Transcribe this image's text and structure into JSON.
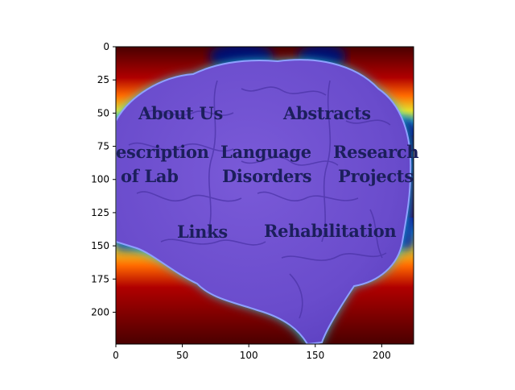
{
  "figure": {
    "x_ticks": [
      0,
      50,
      100,
      150,
      200
    ],
    "y_ticks": [
      0,
      25,
      50,
      75,
      100,
      125,
      150,
      175,
      200
    ],
    "xlim": [
      0,
      224
    ],
    "ylim": [
      224,
      0
    ],
    "colormap": "jet",
    "colors": {
      "overlay": "#6b4fd0",
      "cold": "#000a5a",
      "hot": "#4a0000",
      "background": "#ffffff"
    }
  },
  "nav": {
    "about_us": "About Us",
    "abstracts": "Abstracts",
    "description_line1": "escription",
    "description_line2": "of Lab",
    "language_line1": "Language",
    "language_line2": "Disorders",
    "research_line1": "Research",
    "research_line2": "Projects",
    "links": "Links",
    "rehabilitation": "Rehabilitation"
  }
}
